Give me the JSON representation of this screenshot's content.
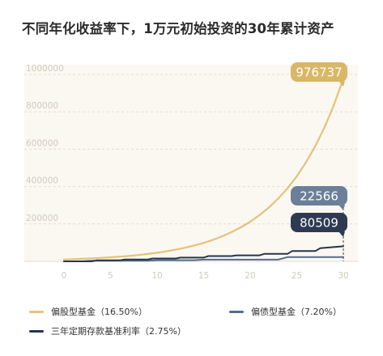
{
  "title": "不同年化收益率下，1万元初始投资的30年累计资产",
  "colors": {
    "plot_bg": "#fbf8f1",
    "grid": "#e3ddcf",
    "tick": "#cfcac0",
    "stock": "#e3c27a",
    "bond": "#536d8c",
    "deposit": "#27344a"
  },
  "chart_data": {
    "type": "line",
    "title": "不同年化收益率下，1万元初始投资的30年累计资产",
    "x_ticks": [
      "0",
      "5",
      "10",
      "15",
      "20",
      "25",
      "30"
    ],
    "y_ticks": [
      "200000",
      "400000",
      "600000",
      "800000",
      "1000000"
    ],
    "xlim": [
      0,
      30
    ],
    "ylim": [
      0,
      1000000
    ],
    "grid": "horizontal dashed",
    "legend_position": "bottom",
    "series": [
      {
        "name": "偏股型基金（16.50%）",
        "key": "stock",
        "x": [
          0,
          1,
          2,
          3,
          4,
          5,
          6,
          7,
          8,
          9,
          10,
          11,
          12,
          13,
          14,
          15,
          16,
          17,
          18,
          19,
          20,
          21,
          22,
          23,
          24,
          25,
          26,
          27,
          28,
          29,
          30
        ],
        "values": [
          10000,
          11650,
          13572,
          15812,
          18421,
          21460,
          25001,
          29126,
          33932,
          39531,
          46053,
          53652,
          62504,
          72818,
          84832,
          98830,
          115136,
          134133,
          156265,
          182048,
          212086,
          247080,
          287848,
          335343,
          390674,
          455136,
          530233,
          617722,
          719646,
          838388,
          976737
        ],
        "end_label": "976737"
      },
      {
        "name": "偏债型基金（7.20%）",
        "key": "bond",
        "x": [
          0,
          2,
          3,
          9,
          10,
          14,
          15,
          23,
          24,
          30
        ],
        "values": [
          0,
          0,
          3000,
          3000,
          6000,
          6000,
          9000,
          9000,
          22566,
          22566
        ],
        "end_label": "22566"
      },
      {
        "name": "三年定期存款基准利率（2.75%）",
        "key": "deposit",
        "x": [
          0,
          3,
          3.5,
          6,
          6.5,
          9,
          9.5,
          12,
          12.5,
          15,
          15.5,
          18,
          18.5,
          21,
          21.5,
          24,
          24.5,
          27,
          27.5,
          30
        ],
        "values": [
          0,
          0,
          5000,
          5000,
          10000,
          10000,
          15000,
          15000,
          20000,
          20000,
          28000,
          28000,
          32000,
          32000,
          40000,
          40000,
          55000,
          55000,
          70000,
          80509
        ],
        "end_label": "80509"
      }
    ]
  },
  "legend": [
    {
      "label": "偏股型基金（16.50%）",
      "key": "stock"
    },
    {
      "label": "偏债型基金（7.20%）",
      "key": "bond"
    },
    {
      "label": "三年定期存款基准利率（2.75%）",
      "key": "deposit"
    }
  ]
}
